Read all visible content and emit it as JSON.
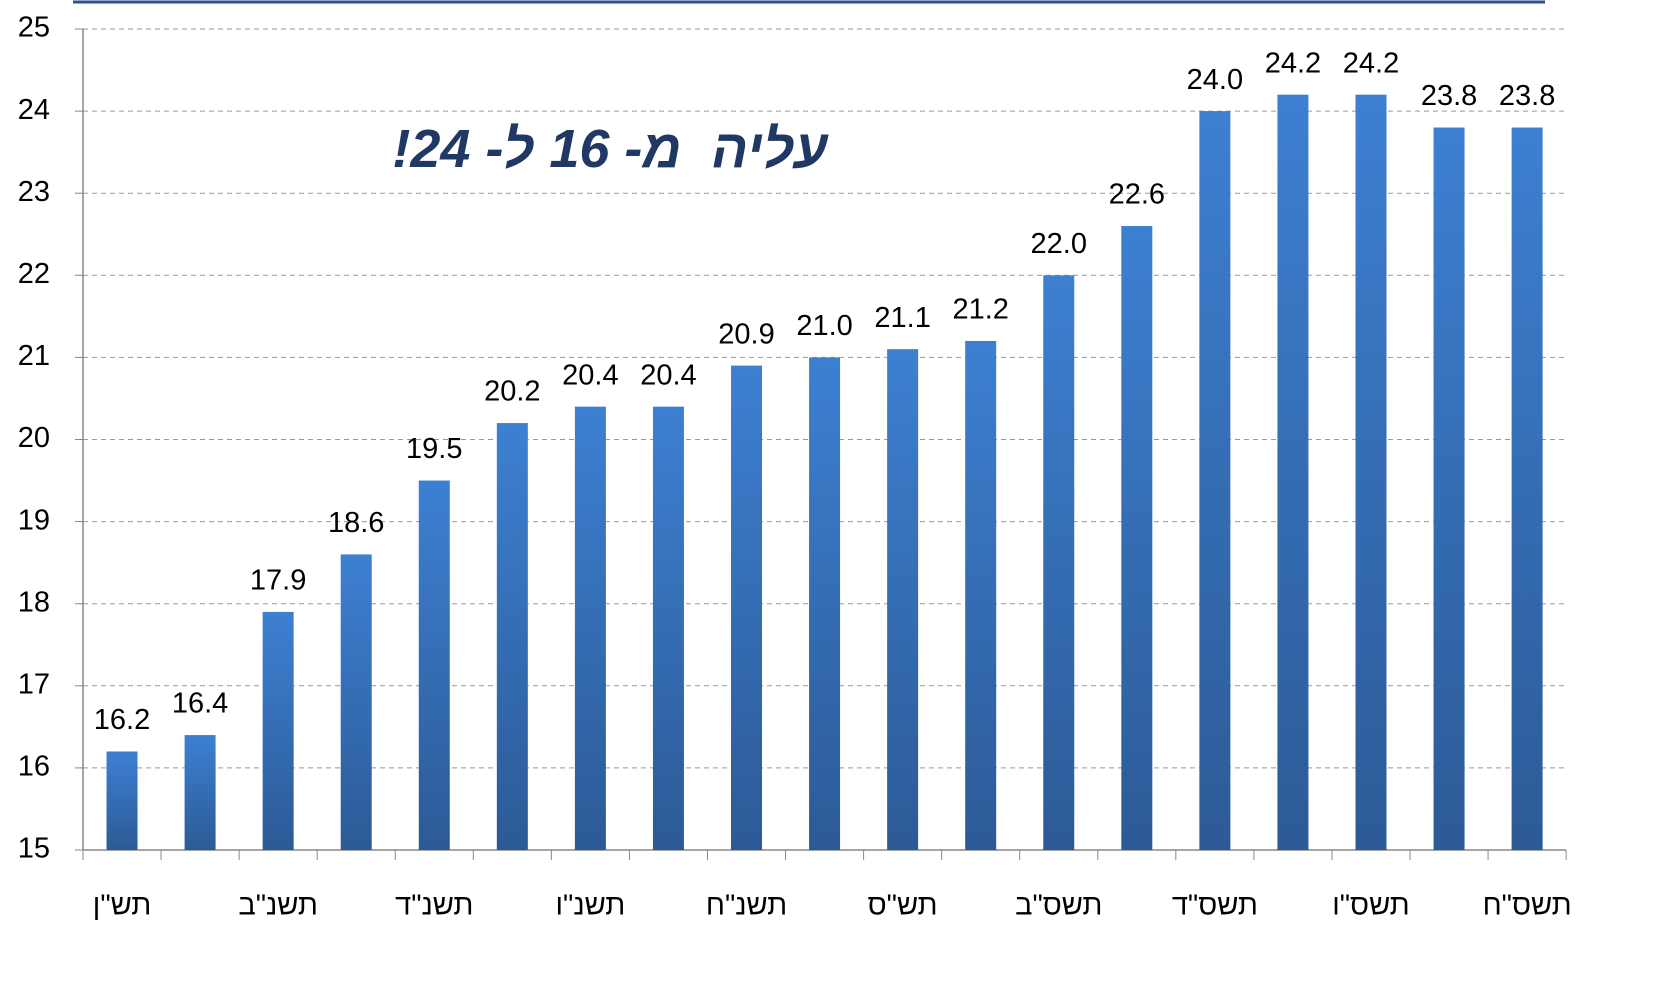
{
  "chart_data": {
    "type": "bar",
    "annotation": "עליה  מ- 16 ל- 24!",
    "categories": [
      "תש\"ן",
      null,
      "תשנ\"ב",
      null,
      "תשנ\"ד",
      null,
      "תשנ\"ו",
      null,
      "תשנ\"ח",
      null,
      "תש\"ס",
      null,
      "תשס\"ב",
      null,
      "תשס\"ד",
      null,
      "תשס\"ו",
      null,
      "תשס\"ח"
    ],
    "values": [
      16.2,
      16.4,
      17.9,
      18.6,
      19.5,
      20.2,
      20.4,
      20.4,
      20.9,
      21.0,
      21.1,
      21.2,
      22.0,
      22.6,
      24.0,
      24.2,
      24.2,
      23.8,
      23.8
    ],
    "value_labels": [
      "16.2",
      "16.4",
      "17.9",
      "18.6",
      "19.5",
      "20.2",
      "20.4",
      "20.4",
      "20.9",
      "21.0",
      "21.1",
      "21.2",
      "22.0",
      "22.6",
      "24.0",
      "24.2",
      "24.2",
      "23.8",
      "23.8"
    ],
    "color": "#3a7acb",
    "ylim": [
      15,
      25
    ],
    "yticks": [
      15,
      16,
      17,
      18,
      19,
      20,
      21,
      22,
      23,
      24,
      25
    ],
    "grid": true
  }
}
